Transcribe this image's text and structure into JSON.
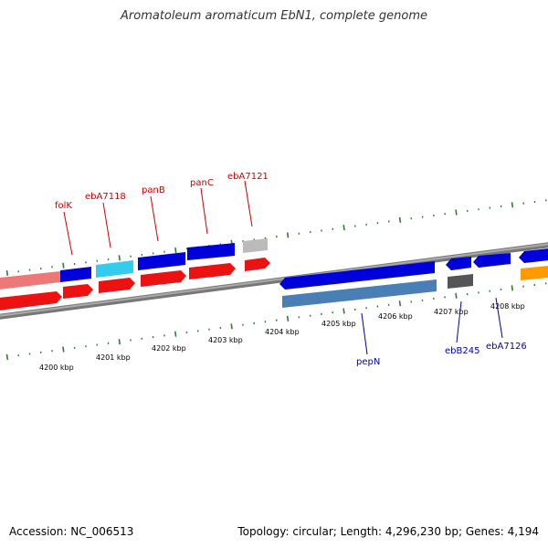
{
  "title": "Aromatoleum aromaticum EbN1, complete genome",
  "footer": {
    "accession": "Accession: NC_006513",
    "stats": "Topology: circular; Length: 4,296,230 bp; Genes: 4,194"
  },
  "scale_labels": [
    "4200 kbp",
    "4201 kbp",
    "4202 kbp",
    "4203 kbp",
    "4204 kbp",
    "4205 kbp",
    "4206 kbp",
    "4207 kbp",
    "4208 kbp"
  ],
  "colors": {
    "forward_gene": "#0000dd",
    "forward_rna": "#33ccee",
    "forward_pseudo": "#bbbbbb",
    "forward_orange": "#ff9900",
    "reverse_gene": "#ee1111",
    "reverse_pink": "#ee7777",
    "reverse_steel": "#4a7fb5",
    "reverse_gray": "#555555",
    "backbone": "#888888",
    "tick": "#2e7d32",
    "label_top": "#cc0000",
    "label_bottom": "#0000aa"
  },
  "gene_labels_top": [
    "folK",
    "ebA7118",
    "panB",
    "panC",
    "ebA7121"
  ],
  "gene_labels_bottom": [
    "pepN",
    "ebB245",
    "ebA7126"
  ]
}
